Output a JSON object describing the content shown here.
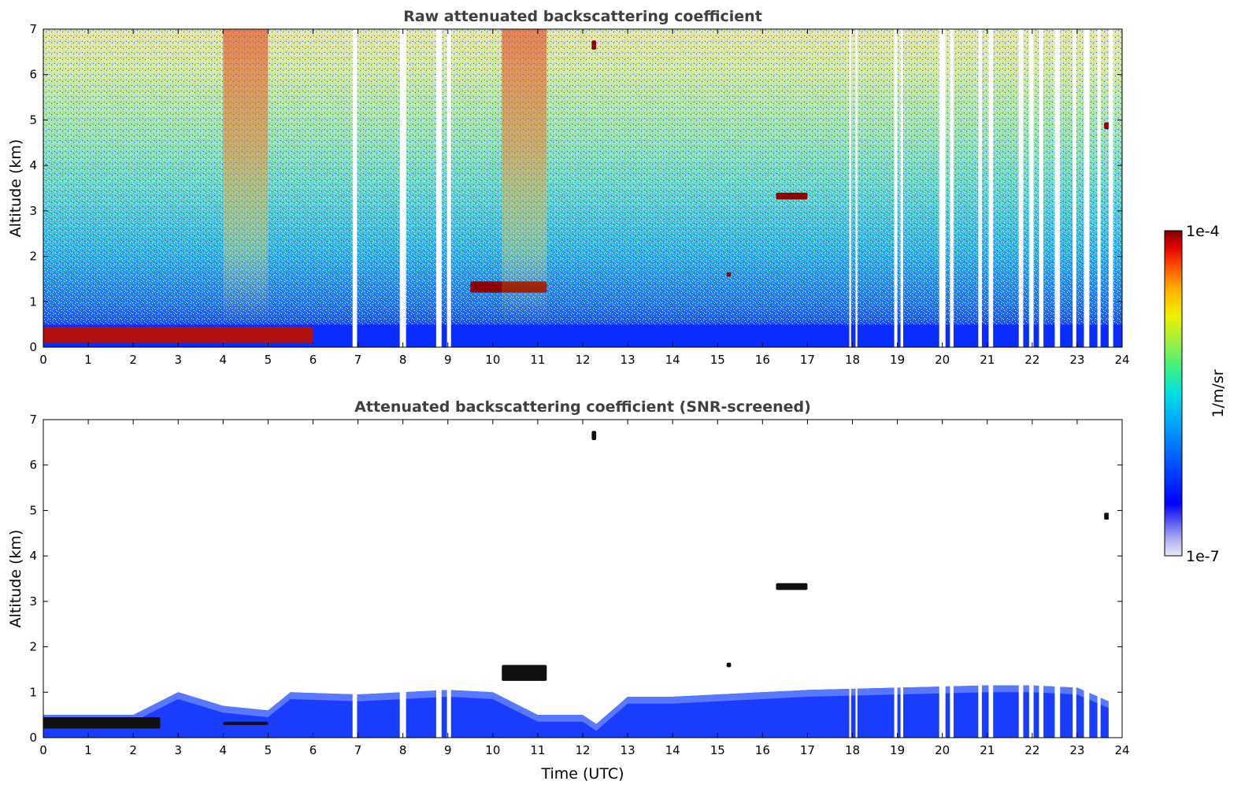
{
  "chart_data": [
    {
      "type": "heatmap",
      "title": "Raw attenuated backscattering coefficient",
      "xlabel": "",
      "ylabel": "Altitude (km)",
      "xlim": [
        0,
        24
      ],
      "ylim": [
        0,
        7
      ],
      "x_ticks": [
        "0",
        "1",
        "2",
        "3",
        "4",
        "5",
        "6",
        "7",
        "8",
        "9",
        "10",
        "11",
        "12",
        "13",
        "14",
        "15",
        "16",
        "17",
        "18",
        "19",
        "20",
        "21",
        "22",
        "23",
        "24"
      ],
      "y_ticks": [
        "0",
        "1",
        "2",
        "3",
        "4",
        "5",
        "6",
        "7"
      ],
      "screened": false,
      "features": [
        {
          "kind": "boundary-layer-aerosol",
          "t_range": [
            0,
            6.0
          ],
          "z_km": [
            0.1,
            0.45
          ],
          "level": "high"
        },
        {
          "kind": "cloud",
          "t_range": [
            9.5,
            11.2
          ],
          "z_km": [
            1.2,
            1.45
          ],
          "level": "very-high"
        },
        {
          "kind": "cloud",
          "t_range": [
            16.3,
            17.0
          ],
          "z_km": [
            3.25,
            3.4
          ],
          "level": "very-high"
        },
        {
          "kind": "cloud",
          "t_range": [
            23.6,
            23.75
          ],
          "z_km": [
            4.8,
            4.95
          ],
          "level": "very-high"
        },
        {
          "kind": "cloud",
          "t_range": [
            12.2,
            12.3
          ],
          "z_km": [
            6.55,
            6.75
          ],
          "level": "very-high"
        },
        {
          "kind": "cloud",
          "t_range": [
            15.2,
            15.3
          ],
          "z_km": [
            1.55,
            1.65
          ],
          "level": "very-high"
        },
        {
          "kind": "high-noise-band",
          "t_range": [
            4.0,
            5.0
          ],
          "z_km": [
            0.5,
            7.0
          ]
        },
        {
          "kind": "high-noise-band",
          "t_range": [
            10.2,
            11.2
          ],
          "z_km": [
            0.5,
            7.0
          ]
        }
      ],
      "data_gaps_utc": [
        [
          6.88,
          6.98
        ],
        [
          7.93,
          8.07
        ],
        [
          8.74,
          8.86
        ],
        [
          8.98,
          9.07
        ],
        [
          17.93,
          17.97
        ],
        [
          18.07,
          18.11
        ],
        [
          18.93,
          19.0
        ],
        [
          19.07,
          19.13
        ],
        [
          19.93,
          20.07
        ],
        [
          20.17,
          20.25
        ],
        [
          20.8,
          20.88
        ],
        [
          21.03,
          21.13
        ],
        [
          21.7,
          21.8
        ],
        [
          21.93,
          22.03
        ],
        [
          22.15,
          22.25
        ],
        [
          22.5,
          22.62
        ],
        [
          22.9,
          22.98
        ],
        [
          23.15,
          23.27
        ],
        [
          23.45,
          23.52
        ],
        [
          23.7,
          23.8
        ]
      ]
    },
    {
      "type": "heatmap",
      "title": "Attenuated backscattering coefficient (SNR-screened)",
      "xlabel": "Time (UTC)",
      "ylabel": "Altitude (km)",
      "xlim": [
        0,
        24
      ],
      "ylim": [
        0,
        7
      ],
      "x_ticks": [
        "0",
        "1",
        "2",
        "3",
        "4",
        "5",
        "6",
        "7",
        "8",
        "9",
        "10",
        "11",
        "12",
        "13",
        "14",
        "15",
        "16",
        "17",
        "18",
        "19",
        "20",
        "21",
        "22",
        "23",
        "24"
      ],
      "y_ticks": [
        "0",
        "1",
        "2",
        "3",
        "4",
        "5",
        "6",
        "7"
      ],
      "screened": true,
      "boundary_layer_top_km": [
        [
          0,
          0.5
        ],
        [
          1,
          0.5
        ],
        [
          2,
          0.5
        ],
        [
          3,
          1.0
        ],
        [
          4,
          0.7
        ],
        [
          5,
          0.6
        ],
        [
          5.5,
          1.0
        ],
        [
          7,
          0.95
        ],
        [
          8,
          1.0
        ],
        [
          9,
          1.05
        ],
        [
          10,
          1.0
        ],
        [
          11,
          0.5
        ],
        [
          12,
          0.5
        ],
        [
          12.3,
          0.3
        ],
        [
          13,
          0.9
        ],
        [
          14,
          0.9
        ],
        [
          15,
          0.95
        ],
        [
          16,
          1.0
        ],
        [
          17,
          1.05
        ],
        [
          19,
          1.1
        ],
        [
          21,
          1.15
        ],
        [
          22,
          1.15
        ],
        [
          23,
          1.1
        ],
        [
          23.7,
          0.8
        ],
        [
          23.8,
          0.0
        ]
      ],
      "features": [
        {
          "kind": "cloud",
          "t_range": [
            0,
            2.6
          ],
          "z_km": [
            0.2,
            0.45
          ],
          "level": "very-high"
        },
        {
          "kind": "cloud",
          "t_range": [
            4.0,
            5.0
          ],
          "z_km": [
            0.28,
            0.35
          ],
          "level": "very-high"
        },
        {
          "kind": "cloud",
          "t_range": [
            10.2,
            11.2
          ],
          "z_km": [
            1.25,
            1.6
          ],
          "level": "very-high"
        },
        {
          "kind": "cloud",
          "t_range": [
            16.3,
            17.0
          ],
          "z_km": [
            3.25,
            3.4
          ],
          "level": "very-high"
        },
        {
          "kind": "cloud",
          "t_range": [
            23.6,
            23.75
          ],
          "z_km": [
            4.8,
            4.95
          ],
          "level": "very-high"
        },
        {
          "kind": "cloud",
          "t_range": [
            12.2,
            12.3
          ],
          "z_km": [
            6.55,
            6.75
          ],
          "level": "very-high"
        },
        {
          "kind": "cloud",
          "t_range": [
            15.2,
            15.3
          ],
          "z_km": [
            1.55,
            1.65
          ],
          "level": "very-high"
        }
      ],
      "data_gaps_utc": [
        [
          6.88,
          6.98
        ],
        [
          7.93,
          8.07
        ],
        [
          8.74,
          8.86
        ],
        [
          8.98,
          9.07
        ],
        [
          17.93,
          17.97
        ],
        [
          18.07,
          18.11
        ],
        [
          18.93,
          19.0
        ],
        [
          19.07,
          19.13
        ],
        [
          19.93,
          20.07
        ],
        [
          20.17,
          20.25
        ],
        [
          20.8,
          20.88
        ],
        [
          21.03,
          21.13
        ],
        [
          21.7,
          21.8
        ],
        [
          21.93,
          22.03
        ],
        [
          22.15,
          22.25
        ],
        [
          22.5,
          22.62
        ],
        [
          22.9,
          22.98
        ],
        [
          23.15,
          23.27
        ],
        [
          23.45,
          23.52
        ],
        [
          23.7,
          23.8
        ]
      ]
    }
  ],
  "colorbar": {
    "label": "1/m/sr",
    "max_label": "1e-4",
    "min_label": "1e-7",
    "scale": "log",
    "range": [
      1e-07,
      0.0001
    ],
    "colormap": [
      "#e8e8f8",
      "#b0b0f0",
      "#6060f0",
      "#0000ff",
      "#0050ff",
      "#00a0ff",
      "#00e0e0",
      "#40f080",
      "#a0f040",
      "#f0f000",
      "#ffb000",
      "#ff5000",
      "#e00000",
      "#800000"
    ]
  }
}
